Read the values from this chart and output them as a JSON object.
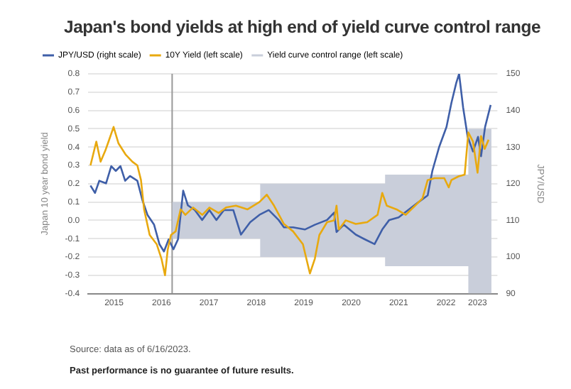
{
  "chart_data": {
    "type": "line",
    "title": "Japan's bond yields at high end of yield curve control range",
    "ylabel": "Japan 10 year bond yield",
    "y2label": "JPY/USD",
    "annotations": [
      "Source: data as of 6/16/2023.",
      "Past performance is no guarantee of future results."
    ],
    "series": [
      {
        "name": "JPY/USD (right scale)",
        "color": "#3f5fa8",
        "axis": "y2",
        "x": [
          "2015-01-01",
          "2015-02-05",
          "2015-03-10",
          "2015-05-01",
          "2015-06-10",
          "2015-07-15",
          "2015-08-20",
          "2015-09-25",
          "2015-11-01",
          "2015-12-28",
          "2016-02-05",
          "2016-03-15",
          "2016-05-05",
          "2016-06-15",
          "2016-07-20",
          "2016-08-25",
          "2016-10-01",
          "2016-11-05",
          "2016-12-15",
          "2017-01-20",
          "2017-03-15",
          "2017-05-10",
          "2017-07-05",
          "2017-08-28",
          "2017-10-25",
          "2018-01-05",
          "2018-03-05",
          "2018-05-15",
          "2018-07-25",
          "2018-10-05",
          "2018-12-20",
          "2019-01-30",
          "2019-04-10",
          "2019-07-10",
          "2019-09-25",
          "2019-12-28",
          "2020-02-20",
          "2020-03-10",
          "2020-05-05",
          "2020-08-05",
          "2020-10-15",
          "2020-12-28",
          "2021-02-25",
          "2021-04-20",
          "2021-07-01",
          "2021-09-12",
          "2021-11-25",
          "2022-02-10",
          "2022-03-18",
          "2022-05-10",
          "2022-07-05",
          "2022-08-12",
          "2022-09-18",
          "2022-10-10",
          "2022-11-10",
          "2022-12-15",
          "2023-01-25",
          "2023-03-05",
          "2023-03-28",
          "2023-04-28",
          "2023-06-10"
        ],
        "values": [
          119.5,
          117.5,
          120.8,
          120.1,
          124.8,
          123.5,
          124.8,
          120.8,
          122.1,
          120.8,
          115.5,
          111.5,
          108.8,
          103.5,
          101.5,
          104.8,
          102.1,
          104.8,
          118.1,
          114.1,
          112.8,
          110.1,
          112.8,
          110.1,
          112.8,
          112.8,
          106.1,
          109.5,
          111.5,
          112.8,
          110.1,
          108.1,
          108.1,
          107.5,
          108.8,
          110.1,
          112.1,
          106.8,
          108.8,
          106.1,
          104.8,
          103.5,
          107.5,
          110.1,
          110.8,
          112.8,
          114.8,
          116.8,
          123.5,
          130.1,
          135.5,
          142.1,
          147.5,
          150,
          140.8,
          132.8,
          128.8,
          132.8,
          127.5,
          135.5,
          141.5
        ]
      },
      {
        "name": "10Y Yield (left scale)",
        "color": "#e8a90f",
        "x": [
          "2015-01-01",
          "2015-02-15",
          "2015-03-20",
          "2015-04-25",
          "2015-05-20",
          "2015-06-28",
          "2015-08-05",
          "2015-09-28",
          "2015-11-20",
          "2015-12-28",
          "2016-01-25",
          "2016-02-18",
          "2016-04-01",
          "2016-05-25",
          "2016-07-01",
          "2016-07-28",
          "2016-08-18",
          "2016-09-12",
          "2016-10-18",
          "2016-11-25",
          "2017-01-01",
          "2017-03-01",
          "2017-05-12",
          "2017-07-05",
          "2017-09-15",
          "2017-11-10",
          "2018-01-25",
          "2018-04-25",
          "2018-07-25",
          "2018-09-20",
          "2018-11-15",
          "2019-01-30",
          "2019-04-10",
          "2019-06-25",
          "2019-08-18",
          "2019-09-25",
          "2019-10-30",
          "2019-12-28",
          "2020-02-20",
          "2020-03-10",
          "2020-03-28",
          "2020-05-20",
          "2020-08-05",
          "2020-11-01",
          "2021-01-20",
          "2021-02-25",
          "2021-04-01",
          "2021-06-15",
          "2021-08-25",
          "2021-11-05",
          "2022-01-01",
          "2022-02-10",
          "2022-04-05",
          "2022-06-18",
          "2022-07-22",
          "2022-08-12",
          "2022-10-05",
          "2022-11-22",
          "2022-12-20",
          "2023-01-25",
          "2023-03-01",
          "2023-03-28",
          "2023-04-25",
          "2023-05-25"
        ],
        "values": [
          0.3,
          0.43,
          0.32,
          0.38,
          0.43,
          0.51,
          0.42,
          0.36,
          0.32,
          0.3,
          0.22,
          0.06,
          -0.08,
          -0.13,
          -0.21,
          -0.3,
          -0.16,
          -0.08,
          -0.06,
          0.06,
          0.03,
          0.07,
          0.03,
          0.07,
          0.04,
          0.07,
          0.08,
          0.06,
          0.1,
          0.14,
          0.08,
          -0.02,
          -0.06,
          -0.13,
          -0.29,
          -0.21,
          -0.08,
          -0.01,
          0.0,
          0.08,
          -0.05,
          0.0,
          -0.02,
          -0.01,
          0.03,
          0.15,
          0.08,
          0.06,
          0.03,
          0.08,
          0.12,
          0.22,
          0.23,
          0.23,
          0.18,
          0.22,
          0.24,
          0.25,
          0.48,
          0.43,
          0.26,
          0.46,
          0.39,
          0.44
        ]
      },
      {
        "name": "Yield curve control range (left scale)",
        "type": "area",
        "color": "#c9ceda",
        "x": [
          "2016-09-21",
          "2018-07-31",
          "2018-07-31",
          "2021-03-19",
          "2021-03-19",
          "2022-12-20",
          "2022-12-20",
          "2023-06-16"
        ],
        "values": [
          null,
          null,
          null,
          null,
          null,
          null,
          null,
          null
        ],
        "lower": [
          -0.1,
          -0.1,
          -0.2,
          -0.2,
          -0.25,
          -0.25,
          -0.4,
          -0.4
        ],
        "upper": [
          0.1,
          0.1,
          0.2,
          0.2,
          0.25,
          0.25,
          0.5,
          0.5
        ]
      }
    ],
    "ref_lines": [
      {
        "axis": "x",
        "value": "2016-09-21",
        "color": "#999999"
      }
    ],
    "xlim": [
      "2014-12-15",
      "2023-08-01"
    ],
    "xticks": [
      {
        "value": "2015-07-01",
        "label": "2015"
      },
      {
        "value": "2016-07-01",
        "label": "2016"
      },
      {
        "value": "2017-07-01",
        "label": "2017"
      },
      {
        "value": "2018-07-01",
        "label": "2018"
      },
      {
        "value": "2019-07-01",
        "label": "2019"
      },
      {
        "value": "2020-07-01",
        "label": "2020"
      },
      {
        "value": "2021-07-01",
        "label": "2021"
      },
      {
        "value": "2022-07-01",
        "label": "2022"
      },
      {
        "value": "2023-03-01",
        "label": "2023"
      }
    ],
    "ylim": [
      -0.4,
      0.8
    ],
    "yticks": [
      -0.4,
      -0.3,
      -0.2,
      -0.1,
      {
        "value": 0,
        "label": "0.0"
      },
      0.1,
      0.2,
      0.3,
      0.4,
      0.5,
      0.6,
      0.7,
      0.8
    ],
    "y2lim": [
      90,
      150
    ],
    "y2ticks": [
      90,
      100,
      110,
      120,
      130,
      140,
      150
    ],
    "grid": "y",
    "legend": "top left",
    "marker": "none",
    "line_style": "solid"
  }
}
